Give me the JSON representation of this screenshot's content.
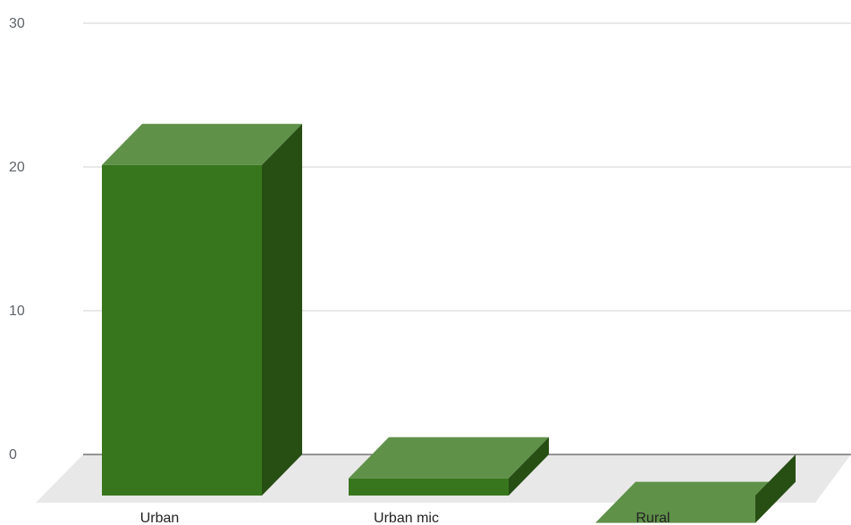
{
  "chart_data": {
    "type": "bar",
    "style": "3d",
    "categories": [
      "Urban",
      "Urban mic",
      "Rural"
    ],
    "values": [
      23,
      1.2,
      -1.9
    ],
    "ylim": [
      0,
      30
    ],
    "yticks": [
      "0",
      "10",
      "20",
      "30"
    ],
    "grid": true,
    "legend": "none",
    "colors": {
      "bar_front": "#38761d",
      "bar_top": "#5f9149",
      "bar_side": "#274e13",
      "floor": "#e8e8e8",
      "gridline": "#d0d0d0",
      "baseline": "#333333"
    }
  }
}
